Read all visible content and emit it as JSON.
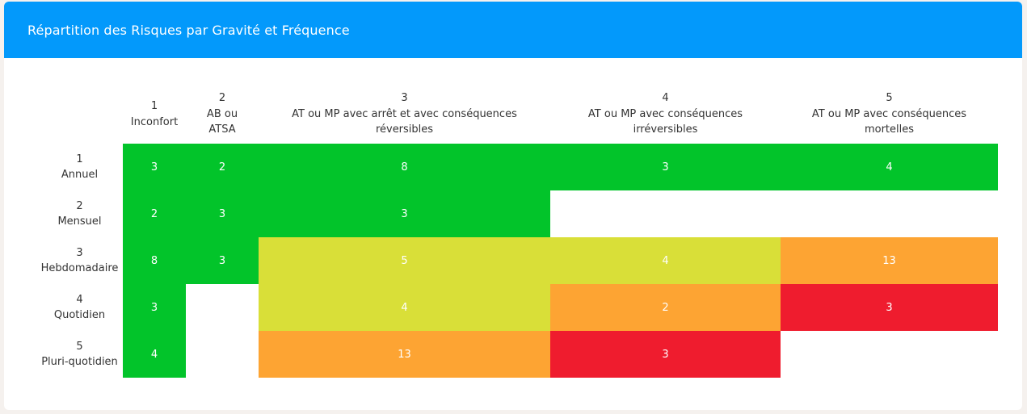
{
  "header": {
    "title": "Répartition des Risques par Gravité et Fréquence"
  },
  "colors": {
    "green": "#02c42a",
    "yellow": "#d9df38",
    "orange": "#fda433",
    "red": "#ef1c2e",
    "header_blue": "#0399fb"
  },
  "columns": [
    {
      "num": "1",
      "lines": [
        "Inconfort"
      ]
    },
    {
      "num": "2",
      "lines": [
        "AB ou",
        "ATSA"
      ]
    },
    {
      "num": "3",
      "lines": [
        "AT ou MP avec arrêt et avec conséquences",
        "réversibles"
      ]
    },
    {
      "num": "4",
      "lines": [
        "AT ou MP avec conséquences",
        "irréversibles"
      ]
    },
    {
      "num": "5",
      "lines": [
        "AT ou MP avec conséquences",
        "mortelles"
      ]
    }
  ],
  "rows": [
    {
      "num": "1",
      "label": "Annuel",
      "cells": [
        {
          "value": "3",
          "level": "green"
        },
        {
          "value": "2",
          "level": "green"
        },
        {
          "value": "8",
          "level": "green"
        },
        {
          "value": "3",
          "level": "green"
        },
        {
          "value": "4",
          "level": "green"
        }
      ]
    },
    {
      "num": "2",
      "label": "Mensuel",
      "cells": [
        {
          "value": "2",
          "level": "green"
        },
        {
          "value": "3",
          "level": "green"
        },
        {
          "value": "3",
          "level": "green"
        },
        {
          "value": "",
          "level": "empty"
        },
        {
          "value": "",
          "level": "empty"
        }
      ]
    },
    {
      "num": "3",
      "label": "Hebdomadaire",
      "cells": [
        {
          "value": "8",
          "level": "green"
        },
        {
          "value": "3",
          "level": "green"
        },
        {
          "value": "5",
          "level": "yellow"
        },
        {
          "value": "4",
          "level": "yellow"
        },
        {
          "value": "13",
          "level": "orange"
        }
      ]
    },
    {
      "num": "4",
      "label": "Quotidien",
      "cells": [
        {
          "value": "3",
          "level": "green"
        },
        {
          "value": "",
          "level": "empty"
        },
        {
          "value": "4",
          "level": "yellow"
        },
        {
          "value": "2",
          "level": "orange"
        },
        {
          "value": "3",
          "level": "red"
        }
      ]
    },
    {
      "num": "5",
      "label": "Pluri-quotidien",
      "cells": [
        {
          "value": "4",
          "level": "green"
        },
        {
          "value": "",
          "level": "empty"
        },
        {
          "value": "13",
          "level": "orange"
        },
        {
          "value": "3",
          "level": "red"
        },
        {
          "value": "",
          "level": "empty"
        }
      ]
    }
  ]
}
